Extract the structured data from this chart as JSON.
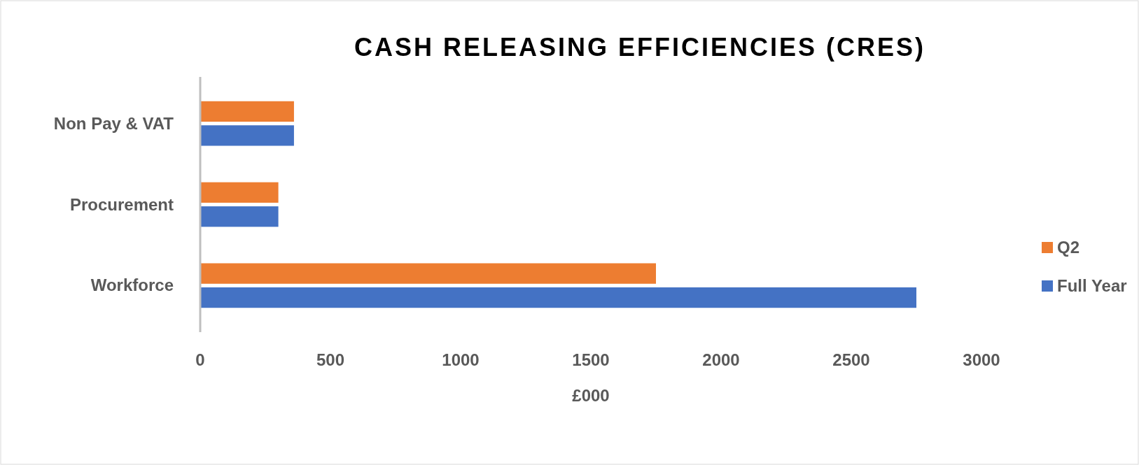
{
  "chart_data": {
    "type": "bar",
    "orientation": "horizontal",
    "title": "CASH RELEASING EFFICIENCIES (CRES)",
    "xlabel": "£000",
    "categories": [
      "Non Pay & VAT",
      "Procurement",
      "Workforce"
    ],
    "series": [
      {
        "name": "Q2",
        "color": "#ed7d31",
        "values": [
          360,
          300,
          1750
        ]
      },
      {
        "name": "Full Year",
        "color": "#4472c4",
        "values": [
          360,
          300,
          2750
        ]
      }
    ],
    "xlim": [
      0,
      3000
    ],
    "xticks": [
      0,
      500,
      1000,
      1500,
      2000,
      2500,
      3000
    ],
    "grid": false,
    "legend": "right"
  }
}
